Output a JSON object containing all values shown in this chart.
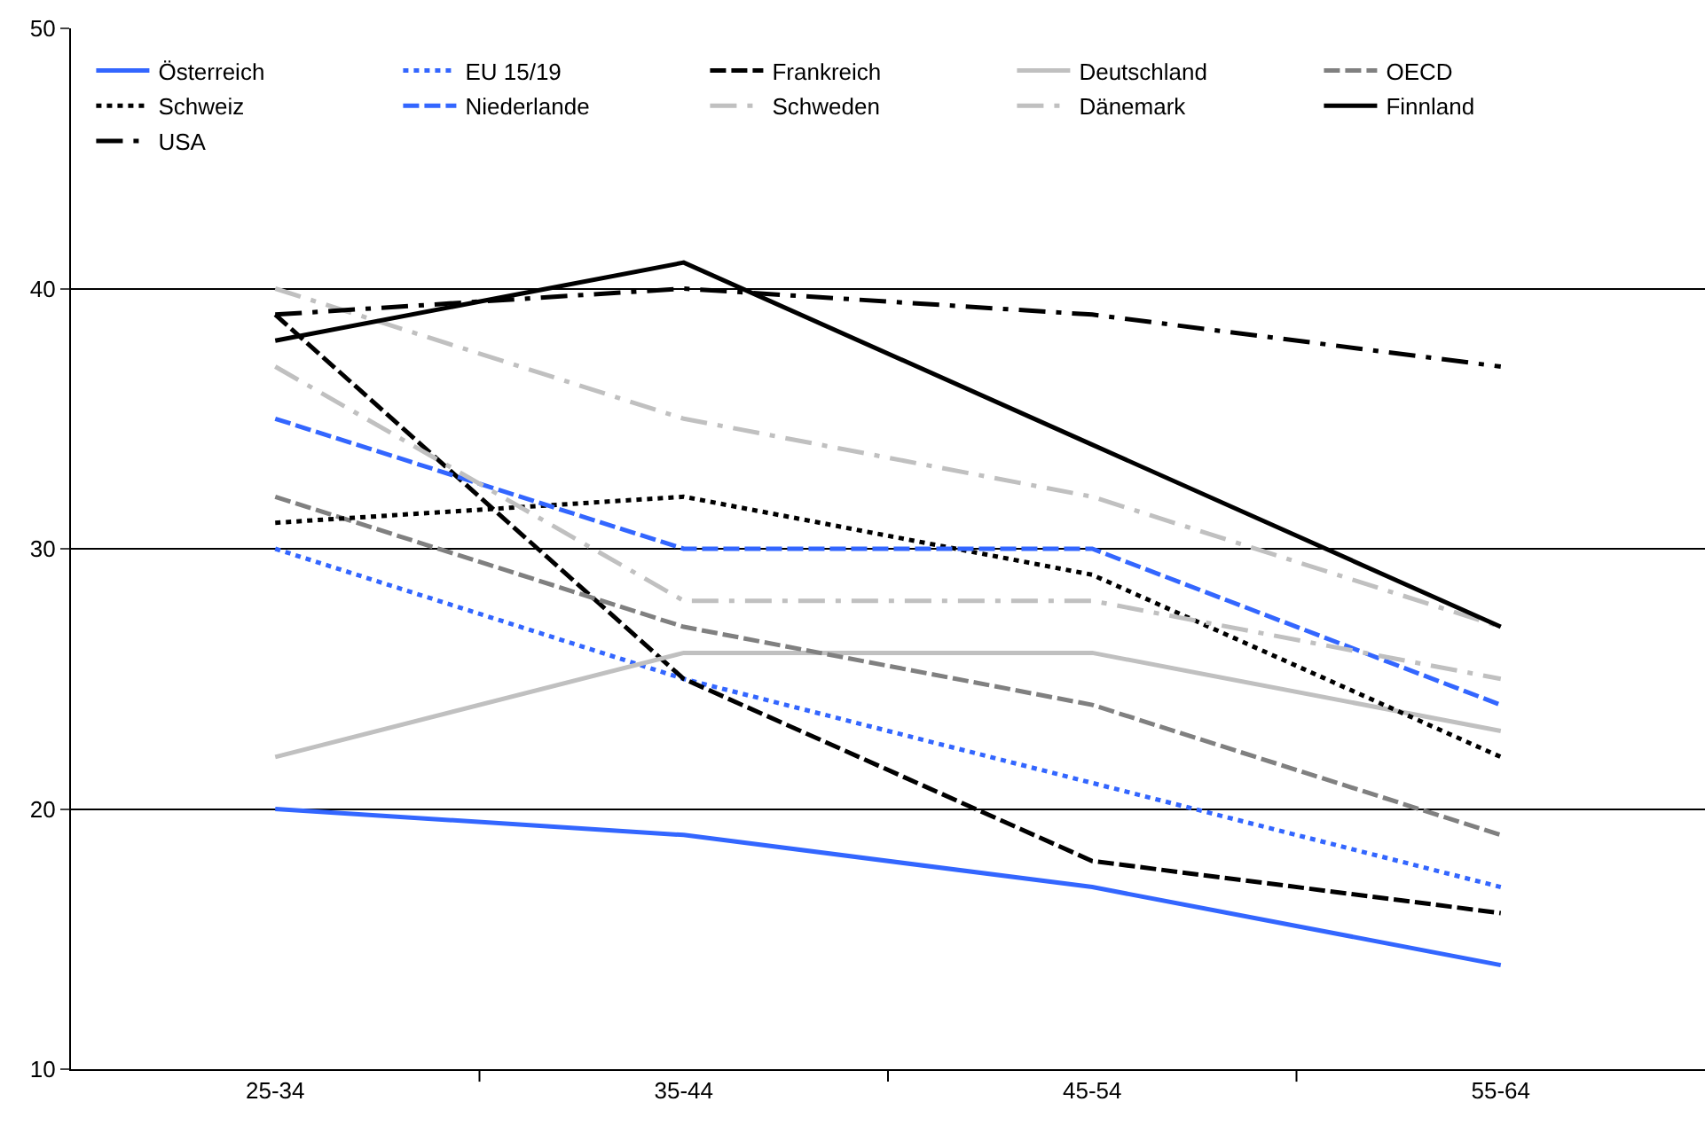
{
  "chart_data": {
    "type": "line",
    "categories": [
      "25-34",
      "35-44",
      "45-54",
      "55-64"
    ],
    "ylim": [
      10,
      50
    ],
    "yticks": [
      10,
      20,
      30,
      40,
      50
    ],
    "grid": "y",
    "legend": "top",
    "marker": "none",
    "series": [
      {
        "name": "Österreich",
        "color": "#3366ff",
        "line_style": "solid",
        "values": [
          20,
          19,
          17,
          14
        ]
      },
      {
        "name": "EU 15/19",
        "color": "#3366ff",
        "line_style": "dotted",
        "values": [
          30,
          25,
          21,
          17
        ]
      },
      {
        "name": "Frankreich",
        "color": "#000000",
        "line_style": "dashed",
        "values": [
          39,
          25,
          18,
          16
        ]
      },
      {
        "name": "Deutschland",
        "color": "#c0c0c0",
        "line_style": "solid",
        "values": [
          22,
          26,
          26,
          23
        ]
      },
      {
        "name": "OECD",
        "color": "#808080",
        "line_style": "dashed",
        "values": [
          32,
          27,
          24,
          19
        ]
      },
      {
        "name": "Schweiz",
        "color": "#000000",
        "line_style": "dotted",
        "values": [
          31,
          32,
          29,
          22
        ]
      },
      {
        "name": "Niederlande",
        "color": "#3366ff",
        "line_style": "dashed",
        "values": [
          35,
          30,
          30,
          24
        ]
      },
      {
        "name": "Schweden",
        "color": "#c0c0c0",
        "line_style": "dashdot",
        "values": [
          40,
          35,
          32,
          27
        ]
      },
      {
        "name": "Dänemark",
        "color": "#c0c0c0",
        "line_style": "dashdot",
        "values": [
          37,
          28,
          28,
          25
        ]
      },
      {
        "name": "Finnland",
        "color": "#000000",
        "line_style": "solid",
        "values": [
          38,
          41,
          34,
          27
        ]
      },
      {
        "name": "USA",
        "color": "#000000",
        "line_style": "dashdot",
        "values": [
          39,
          40,
          39,
          37
        ]
      }
    ]
  }
}
